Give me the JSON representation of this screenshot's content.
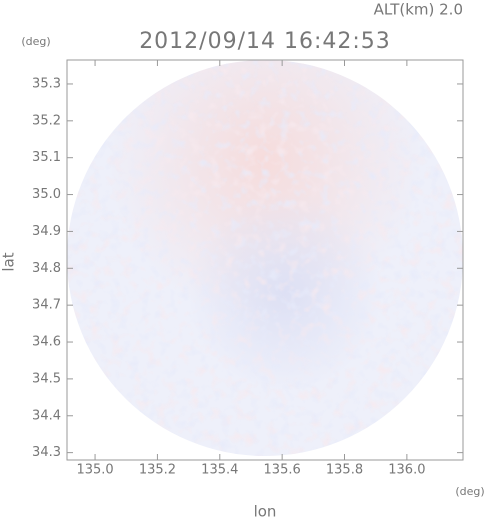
{
  "chart_data": {
    "type": "radar-image",
    "title": "2012/09/14 16:42:53",
    "annotation": "ALT(km) 2.0",
    "x_label": "lon",
    "x_unit": "(deg)",
    "y_label": "lat",
    "y_unit": "(deg)",
    "xlim": [
      134.91,
      136.18
    ],
    "xticks": [
      {
        "value": 135.0,
        "label": "135.0"
      },
      135.2,
      135.4,
      135.6,
      135.8,
      {
        "value": 136.0,
        "label": "136.0"
      }
    ],
    "ylim": [
      34.28,
      35.365
    ],
    "yticks": [
      34.3,
      34.4,
      34.5,
      34.6,
      34.7,
      34.8,
      34.9,
      {
        "value": 35.0,
        "label": "35.0"
      },
      35.1,
      35.2,
      35.3
    ]
  }
}
